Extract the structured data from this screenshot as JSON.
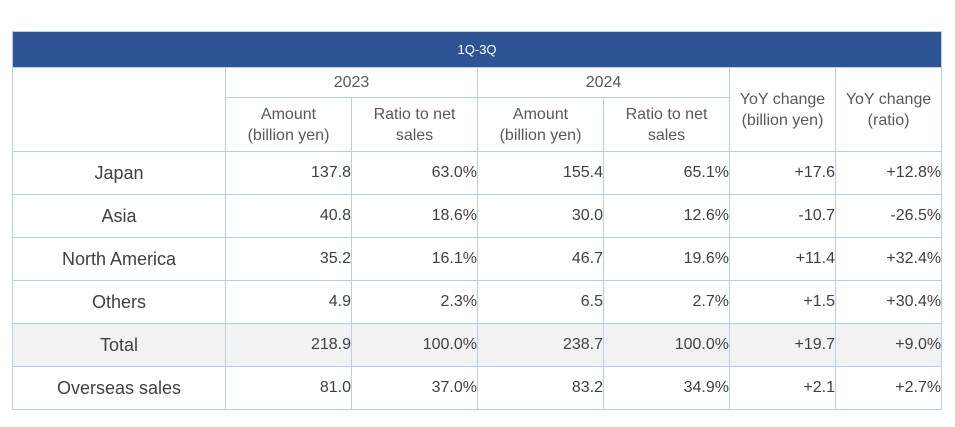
{
  "table": {
    "period": "1Q-3Q",
    "years": [
      "2023",
      "2024"
    ],
    "sub_headers": {
      "amount_line1": "Amount",
      "amount_line2": "(billion yen)",
      "ratio_line1": "Ratio to net",
      "ratio_line2": "sales"
    },
    "yoy_headers": {
      "change_line1": "YoY change",
      "change_line2": "(billion yen)",
      "ratio_line1": "YoY change",
      "ratio_line2": "(ratio)"
    },
    "rows": [
      {
        "region": "Japan",
        "amount_2023": "137.8",
        "ratio_2023": "63.0%",
        "amount_2024": "155.4",
        "ratio_2024": "65.1%",
        "yoy_change": "+17.6",
        "yoy_ratio": "+12.8%"
      },
      {
        "region": "Asia",
        "amount_2023": "40.8",
        "ratio_2023": "18.6%",
        "amount_2024": "30.0",
        "ratio_2024": "12.6%",
        "yoy_change": "-10.7",
        "yoy_ratio": "-26.5%"
      },
      {
        "region": "North America",
        "amount_2023": "35.2",
        "ratio_2023": "16.1%",
        "amount_2024": "46.7",
        "ratio_2024": "19.6%",
        "yoy_change": "+11.4",
        "yoy_ratio": "+32.4%"
      },
      {
        "region": "Others",
        "amount_2023": "4.9",
        "ratio_2023": "2.3%",
        "amount_2024": "6.5",
        "ratio_2024": "2.7%",
        "yoy_change": "+1.5",
        "yoy_ratio": "+30.4%"
      },
      {
        "region": "Total",
        "amount_2023": "218.9",
        "ratio_2023": "100.0%",
        "amount_2024": "238.7",
        "ratio_2024": "100.0%",
        "yoy_change": "+19.7",
        "yoy_ratio": "+9.0%"
      },
      {
        "region": "Overseas sales",
        "amount_2023": "81.0",
        "ratio_2023": "37.0%",
        "amount_2024": "83.2",
        "ratio_2024": "34.9%",
        "yoy_change": "+2.1",
        "yoy_ratio": "+2.7%"
      }
    ]
  },
  "colors": {
    "banner_background": "#2e5496",
    "border": "#b9cde5",
    "total_row_background": "#f2f2f2"
  }
}
